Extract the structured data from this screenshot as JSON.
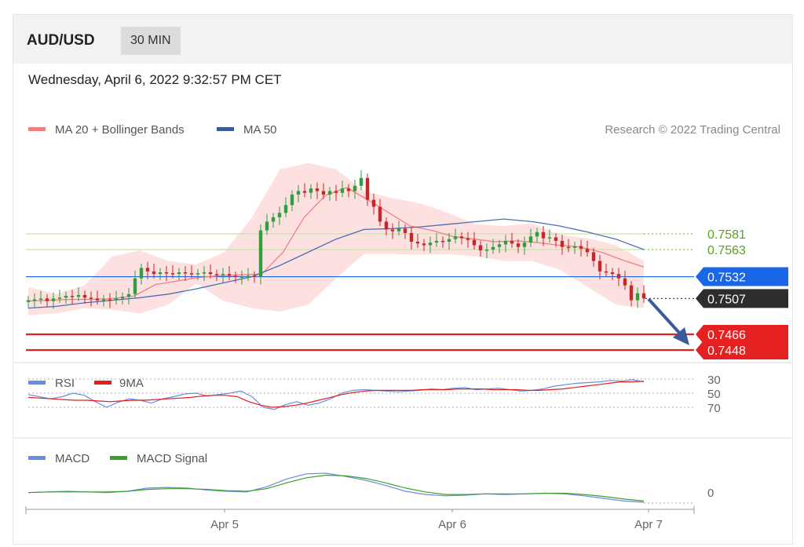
{
  "header": {
    "symbol": "AUD/USD",
    "timeframe": "30 MIN"
  },
  "datetime": "Wednesday, April 6, 2022 9:32:57 PM CET",
  "legend": {
    "ma20": "MA 20 + Bollinger Bands",
    "ma50": "MA 50",
    "rsi": "RSI",
    "rsi_ma": "9MA",
    "macd": "MACD",
    "macd_signal": "MACD Signal"
  },
  "credit": "Research © 2022 Trading Central",
  "colors": {
    "support": "#e52020",
    "resistance": "#8fc44a",
    "pivot": "#1a66e8",
    "current": "#2d2d2d",
    "ma20": "#f08080",
    "ma50": "#4a6fb5",
    "bands": "#fde0e0",
    "candle_up": "#2e9e3f",
    "candle_down": "#c62828"
  },
  "chart_data": [
    {
      "type": "candlestick",
      "title": "AUD/USD",
      "x_ticks": [
        "Apr 5",
        "Apr 6",
        "Apr 7"
      ],
      "ylim": [
        0.744,
        0.7605
      ],
      "close": [
        0.7505,
        0.7506,
        0.7507,
        0.7504,
        0.7507,
        0.7508,
        0.751,
        0.7509,
        0.7511,
        0.7508,
        0.7507,
        0.7505,
        0.7506,
        0.7505,
        0.7507,
        0.7509,
        0.7512,
        0.753,
        0.7542,
        0.7538,
        0.7535,
        0.7537,
        0.7536,
        0.7535,
        0.7537,
        0.7536,
        0.7535,
        0.7536,
        0.7537,
        0.7535,
        0.7534,
        0.7535,
        0.7533,
        0.7532,
        0.7532,
        0.7533,
        0.7532,
        0.7585,
        0.7595,
        0.76,
        0.7605,
        0.7614,
        0.7626,
        0.763,
        0.7628,
        0.7633,
        0.763,
        0.7626,
        0.763,
        0.7628,
        0.7633,
        0.763,
        0.7636,
        0.7645,
        0.762,
        0.7612,
        0.7595,
        0.7586,
        0.7584,
        0.7587,
        0.7582,
        0.7572,
        0.757,
        0.7568,
        0.7571,
        0.7573,
        0.7572,
        0.7575,
        0.7578,
        0.7576,
        0.7574,
        0.7568,
        0.7562,
        0.7563,
        0.7566,
        0.7569,
        0.7573,
        0.757,
        0.7566,
        0.7571,
        0.7578,
        0.7583,
        0.7576,
        0.7577,
        0.7573,
        0.7566,
        0.7565,
        0.7567,
        0.7564,
        0.756,
        0.755,
        0.7538,
        0.7537,
        0.7535,
        0.753,
        0.7522,
        0.7505,
        0.7513,
        0.7507
      ],
      "bollinger_upper": [
        0.752,
        0.7512,
        0.7522,
        0.7555,
        0.7562,
        0.755,
        0.7546,
        0.756,
        0.76,
        0.7655,
        0.7662,
        0.7655,
        0.763,
        0.7622,
        0.7616,
        0.7605,
        0.7592,
        0.759,
        0.7593,
        0.758,
        0.7576,
        0.7568,
        0.755
      ],
      "bollinger_lower": [
        0.7488,
        0.749,
        0.7496,
        0.7494,
        0.749,
        0.75,
        0.7524,
        0.7504,
        0.7496,
        0.7492,
        0.75,
        0.753,
        0.7558,
        0.7558,
        0.7557,
        0.7558,
        0.7555,
        0.755,
        0.755,
        0.754,
        0.752,
        0.75,
        0.7496
      ],
      "ma20": [
        0.7504,
        0.7505,
        0.7506,
        0.7506,
        0.7507,
        0.751,
        0.7523,
        0.7527,
        0.7531,
        0.7533,
        0.7534,
        0.7535,
        0.756,
        0.76,
        0.7625,
        0.7634,
        0.762,
        0.7605,
        0.759,
        0.7585,
        0.7578,
        0.7575,
        0.7572,
        0.7573,
        0.7571,
        0.7568,
        0.7566,
        0.756,
        0.7551,
        0.7543
      ],
      "ma50": [
        0.7496,
        0.7498,
        0.7502,
        0.7505,
        0.7508,
        0.7512,
        0.7518,
        0.7525,
        0.7532,
        0.7545,
        0.756,
        0.7575,
        0.7586,
        0.7587,
        0.7589,
        0.7592,
        0.7595,
        0.7598,
        0.7595,
        0.759,
        0.7583,
        0.7575,
        0.7563
      ],
      "levels": [
        {
          "label": "0.7581",
          "kind": "resistance",
          "value": 0.7581
        },
        {
          "label": "0.7563",
          "kind": "resistance",
          "value": 0.7563
        },
        {
          "label": "0.7532",
          "kind": "pivot",
          "value": 0.7532
        },
        {
          "label": "0.7507",
          "kind": "current",
          "value": 0.7507
        },
        {
          "label": "0.7466",
          "kind": "support",
          "value": 0.7466
        },
        {
          "label": "0.7448",
          "kind": "support",
          "value": 0.7448
        }
      ]
    },
    {
      "type": "line",
      "series_names": [
        "RSI",
        "9MA"
      ],
      "y_ticks": [
        "70",
        "50",
        "30"
      ],
      "ylim": [
        25,
        75
      ],
      "rsi": [
        52,
        55,
        58,
        55,
        50,
        53,
        62,
        70,
        63,
        58,
        60,
        64,
        58,
        55,
        51,
        50,
        54,
        52,
        50,
        47,
        55,
        70,
        73,
        66,
        62,
        67,
        64,
        58,
        50,
        46,
        45,
        46,
        47,
        48,
        47,
        46,
        44,
        45,
        43,
        42,
        45,
        44,
        43,
        45,
        47,
        46,
        44,
        40,
        38,
        36,
        35,
        34,
        32,
        33,
        31,
        34
      ],
      "rsi_9ma": [
        56,
        57,
        58,
        59,
        60,
        60,
        61,
        62,
        61,
        60,
        60,
        59,
        58,
        57,
        56,
        54,
        53,
        53,
        55,
        62,
        67,
        70,
        69,
        67,
        64,
        60,
        56,
        52,
        49,
        47,
        46,
        46,
        46,
        46,
        45,
        45,
        45,
        44,
        44,
        44,
        45,
        45,
        45,
        46,
        46,
        45,
        44,
        42,
        40,
        38,
        36,
        34,
        34,
        33
      ]
    },
    {
      "type": "line",
      "series_names": [
        "MACD",
        "MACD Signal"
      ],
      "y_ticks": [
        "0"
      ],
      "ylim": [
        -0.002,
        0.0035
      ],
      "macd": [
        0.0001,
        0.0002,
        0.0003,
        0.0002,
        0.0001,
        0.0003,
        0.0008,
        0.0009,
        0.0008,
        0.0005,
        0.0003,
        0.0002,
        0.001,
        0.0022,
        0.003,
        0.0031,
        0.0026,
        0.002,
        0.0012,
        0.0003,
        -0.0002,
        -0.0004,
        -0.0003,
        -0.0001,
        -0.0002,
        -0.0001,
        0.0,
        -0.0001,
        -0.0004,
        -0.0008,
        -0.0012,
        -0.0014
      ],
      "macd_signal": [
        0.0001,
        0.0002,
        0.0002,
        0.0002,
        0.0002,
        0.0003,
        0.0006,
        0.0007,
        0.0007,
        0.0006,
        0.0004,
        0.0003,
        0.0007,
        0.0016,
        0.0024,
        0.0028,
        0.0027,
        0.0023,
        0.0016,
        0.0008,
        0.0002,
        -0.0002,
        -0.0002,
        -0.0001,
        -0.0001,
        -0.0001,
        0.0,
        0.0,
        -0.0002,
        -0.0005,
        -0.0009,
        -0.0012
      ]
    }
  ]
}
